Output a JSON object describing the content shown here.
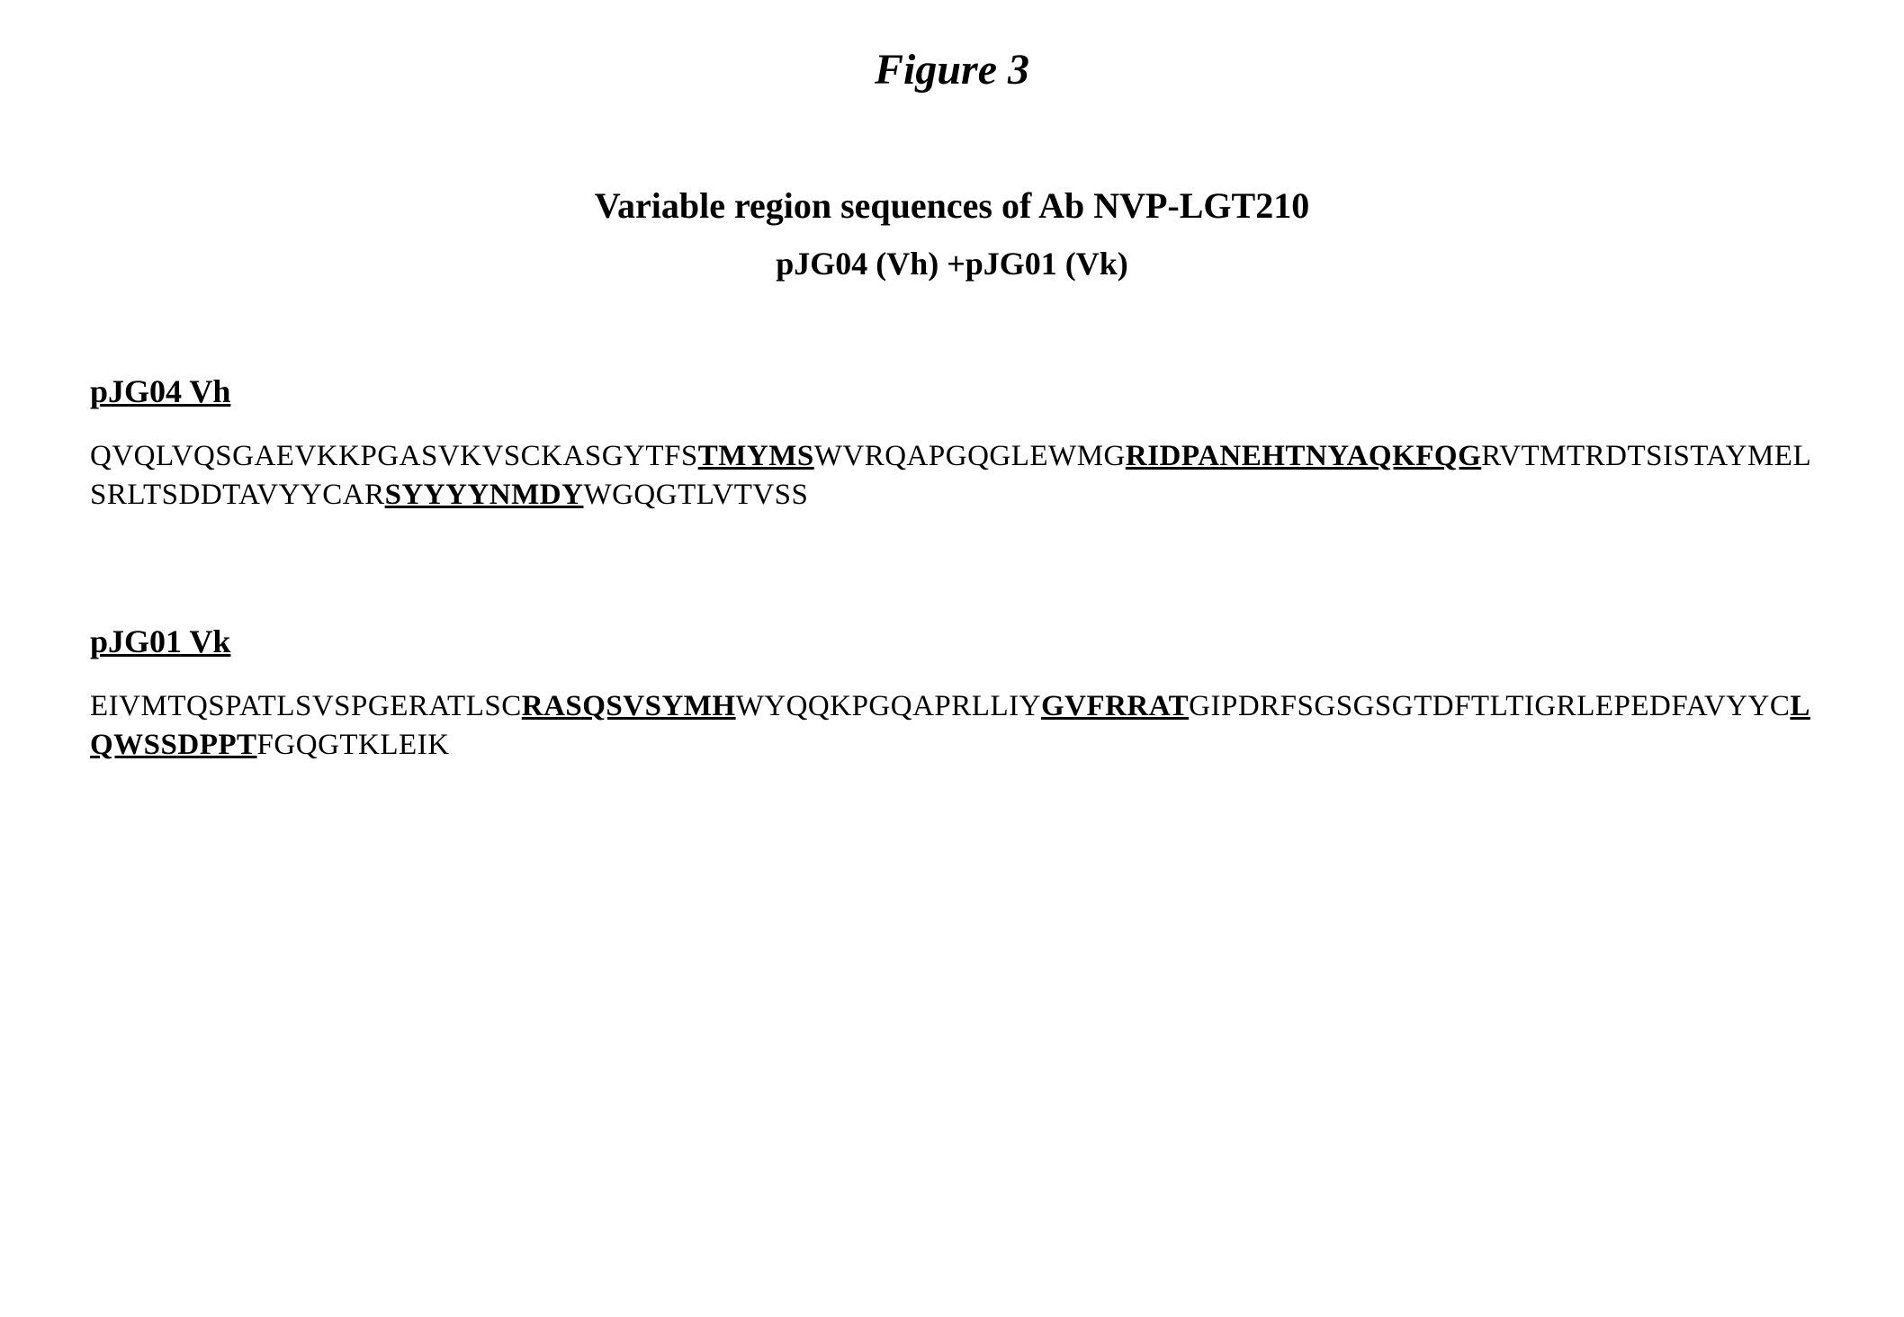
{
  "figure_title": "Figure 3",
  "subtitle": "Variable region sequences of Ab NVP-LGT210",
  "plasmid_line": "pJG04 (Vh) +pJG01 (Vk)",
  "vh": {
    "heading": "pJG04 Vh",
    "seg1": "QVQLVQSGAEVKKPGASVKVSCKASGYTFS",
    "cdr1": "TMYMS",
    "seg2": "WVRQAPGQGLEWMG",
    "cdr2": "RIDPANEHTNYAQKFQG",
    "seg3": "RVTMTRDTSISTAYMELSRLTSDDTAVYYCAR",
    "cdr3": "SYYYYNMDY",
    "seg4": "WGQGTLVTVSS"
  },
  "vk": {
    "heading": "pJG01 Vk",
    "seg1": "EIVMTQSPATLSVSPGERATLSC",
    "cdr1": "RASQSVSYMH",
    "seg2": "WYQQKPGQAPRLLIY",
    "cdr2": "GVFRRAT",
    "seg3": "GIPDRFSGSGSGTDFTLTIGRLEPEDFAVYYC",
    "cdr3": "LQWSSDPPT",
    "seg4": "FGQGTKLEIK"
  },
  "colors": {
    "background": "#ffffff",
    "text": "#000000"
  },
  "typography": {
    "font_family": "Times New Roman",
    "figure_title_size": 48,
    "subtitle_size": 40,
    "plasmid_size": 36,
    "heading_size": 36,
    "sequence_size": 33
  }
}
